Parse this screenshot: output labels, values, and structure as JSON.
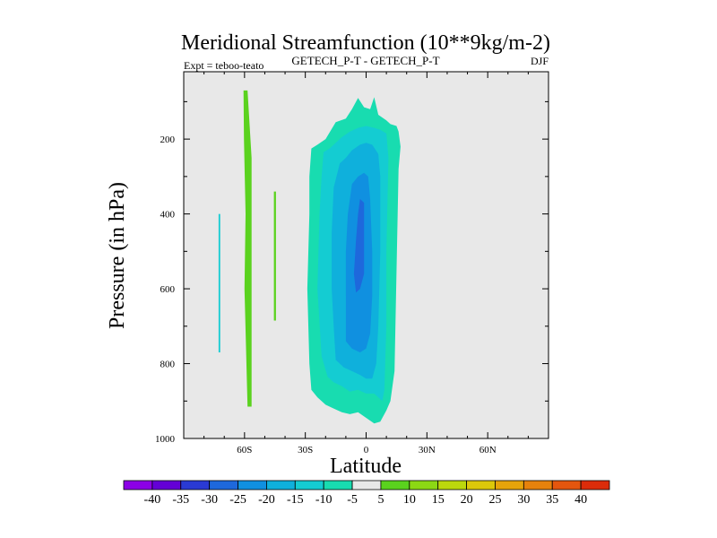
{
  "chart_data": {
    "type": "heatmap",
    "title": "Meridional Streamfunction (10**9kg/m-2)",
    "subtitle_left": "Expt = teboo-teato",
    "subtitle_center": "GETECH_P-T - GETECH_P-T",
    "subtitle_right": "DJF",
    "xlabel": "Latitude",
    "ylabel": "Pressure (in hPa)",
    "xlim": [
      -90,
      90
    ],
    "ylim": [
      1000,
      20
    ],
    "x_ticks": [
      {
        "value": -60,
        "label": "60S"
      },
      {
        "value": -30,
        "label": "30S"
      },
      {
        "value": 0,
        "label": "0"
      },
      {
        "value": 30,
        "label": "30N"
      },
      {
        "value": 60,
        "label": "60N"
      }
    ],
    "y_ticks": [
      {
        "value": 200,
        "label": "200"
      },
      {
        "value": 400,
        "label": "400"
      },
      {
        "value": 600,
        "label": "600"
      },
      {
        "value": 800,
        "label": "800"
      },
      {
        "value": 1000,
        "label": "1000"
      }
    ],
    "colorbar": {
      "labels": [
        "-40",
        "-35",
        "-30",
        "-25",
        "-20",
        "-15",
        "-10",
        "-5",
        "5",
        "10",
        "15",
        "20",
        "25",
        "30",
        "35",
        "40"
      ],
      "colors": [
        "#8c00e6",
        "#6400d6",
        "#2a3ad4",
        "#1e68dc",
        "#1090e0",
        "#0fb0dc",
        "#14ccd2",
        "#18dcb0",
        "#e8e8e8",
        "#5ad21e",
        "#8cd814",
        "#bcd80c",
        "#dcc80a",
        "#e6a40a",
        "#e6820c",
        "#e4560e",
        "#dc2c0a"
      ]
    },
    "contours": [
      {
        "level": 5,
        "color": "#5ad21e",
        "points": [
          [
            -60.5,
            70
          ],
          [
            -58.5,
            70
          ],
          [
            -56.5,
            250
          ],
          [
            -56.5,
            915
          ],
          [
            -58.5,
            915
          ],
          [
            -60,
            600
          ],
          [
            -59.5,
            400
          ],
          [
            -60.3,
            200
          ]
        ]
      },
      {
        "level": 5,
        "color": "#5ad21e",
        "points": [
          [
            -45.5,
            340
          ],
          [
            -44.5,
            340
          ],
          [
            -44.5,
            685
          ],
          [
            -45.5,
            685
          ]
        ]
      },
      {
        "level": -5,
        "color": "#14ccd2",
        "points": [
          [
            -72.8,
            400
          ],
          [
            -72,
            400
          ],
          [
            -72,
            770
          ],
          [
            -72.8,
            770
          ]
        ]
      },
      {
        "level": -5,
        "color": "#18dcb0",
        "points": [
          [
            -27,
            225
          ],
          [
            -24,
            215
          ],
          [
            -20,
            200
          ],
          [
            -15,
            155
          ],
          [
            -10,
            145
          ],
          [
            -7,
            120
          ],
          [
            -4,
            90
          ],
          [
            -1,
            115
          ],
          [
            2,
            120
          ],
          [
            4,
            88
          ],
          [
            6,
            135
          ],
          [
            10,
            150
          ],
          [
            12,
            160
          ],
          [
            15,
            165
          ],
          [
            16,
            180
          ],
          [
            17,
            220
          ],
          [
            16,
            280
          ],
          [
            14,
            820
          ],
          [
            12,
            900
          ],
          [
            10,
            925
          ],
          [
            7,
            955
          ],
          [
            4,
            960
          ],
          [
            0,
            945
          ],
          [
            -4,
            930
          ],
          [
            -8,
            935
          ],
          [
            -12,
            930
          ],
          [
            -16,
            920
          ],
          [
            -20,
            910
          ],
          [
            -24,
            890
          ],
          [
            -27,
            870
          ],
          [
            -28,
            800
          ],
          [
            -29,
            600
          ],
          [
            -28,
            400
          ],
          [
            -28,
            300
          ]
        ]
      },
      {
        "level": -10,
        "color": "#14ccd2",
        "points": [
          [
            -21,
            235
          ],
          [
            -18,
            225
          ],
          [
            -15,
            210
          ],
          [
            -12,
            195
          ],
          [
            -8,
            180
          ],
          [
            -4,
            170
          ],
          [
            0,
            165
          ],
          [
            4,
            170
          ],
          [
            7,
            175
          ],
          [
            10,
            185
          ],
          [
            11,
            250
          ],
          [
            10,
            500
          ],
          [
            10,
            700
          ],
          [
            9,
            870
          ],
          [
            8,
            900
          ],
          [
            4,
            880
          ],
          [
            0,
            880
          ],
          [
            -4,
            870
          ],
          [
            -8,
            875
          ],
          [
            -12,
            860
          ],
          [
            -16,
            850
          ],
          [
            -19,
            835
          ],
          [
            -22,
            780
          ],
          [
            -24,
            600
          ],
          [
            -23,
            400
          ],
          [
            -22,
            300
          ]
        ]
      },
      {
        "level": -15,
        "color": "#0fb0dc",
        "points": [
          [
            -13,
            265
          ],
          [
            -10,
            250
          ],
          [
            -7,
            230
          ],
          [
            -3,
            215
          ],
          [
            0,
            210
          ],
          [
            3,
            215
          ],
          [
            6,
            240
          ],
          [
            7,
            300
          ],
          [
            7,
            500
          ],
          [
            6,
            700
          ],
          [
            5,
            800
          ],
          [
            3,
            840
          ],
          [
            0,
            840
          ],
          [
            -3,
            830
          ],
          [
            -7,
            820
          ],
          [
            -11,
            810
          ],
          [
            -15,
            790
          ],
          [
            -16,
            700
          ],
          [
            -17,
            600
          ],
          [
            -17,
            450
          ],
          [
            -16,
            330
          ]
        ]
      },
      {
        "level": -20,
        "color": "#1090e0",
        "points": [
          [
            -7,
            320
          ],
          [
            -4,
            300
          ],
          [
            -1,
            290
          ],
          [
            1,
            300
          ],
          [
            2,
            360
          ],
          [
            3,
            500
          ],
          [
            3,
            620
          ],
          [
            2,
            720
          ],
          [
            0,
            760
          ],
          [
            -3,
            770
          ],
          [
            -7,
            760
          ],
          [
            -10,
            740
          ],
          [
            -10,
            650
          ],
          [
            -10,
            500
          ],
          [
            -9,
            400
          ]
        ]
      },
      {
        "level": -25,
        "color": "#1e68dc",
        "points": [
          [
            -4,
            400
          ],
          [
            -3,
            360
          ],
          [
            -1,
            370
          ],
          [
            -1,
            450
          ],
          [
            -1,
            560
          ],
          [
            -3,
            600
          ],
          [
            -5,
            610
          ],
          [
            -6,
            560
          ],
          [
            -5,
            470
          ]
        ]
      }
    ]
  }
}
